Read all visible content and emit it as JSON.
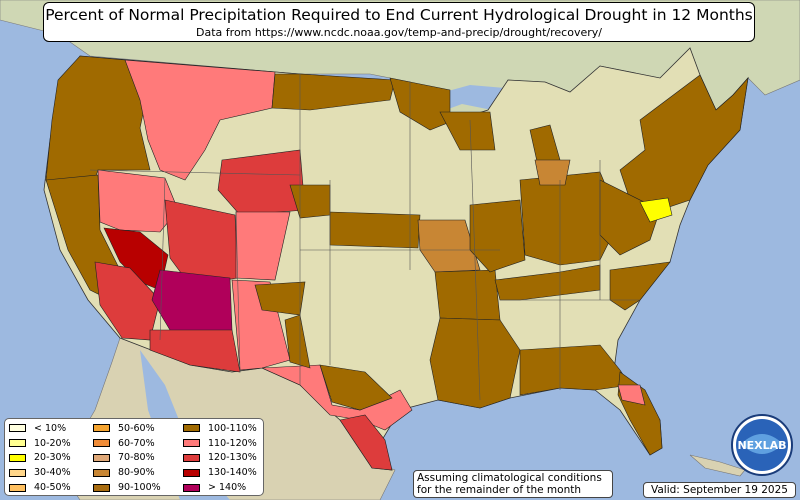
{
  "title": "Percent of Normal Precipitation Required to End Current Hydrological Drought in 12 Months",
  "subtitle": "Data from https://www.ncdc.noaa.gov/temp-and-precip/drought/recovery/",
  "note_lines": [
    "Assuming climatological conditions",
    "for the remainder of the month"
  ],
  "valid": "Valid: September 19 2025",
  "logo_text": "NEXLAB",
  "legend": [
    {
      "label": "< 10%",
      "color": "#ffffe0"
    },
    {
      "label": "10-20%",
      "color": "#ffff90"
    },
    {
      "label": "20-30%",
      "color": "#ffff00"
    },
    {
      "label": "30-40%",
      "color": "#ffd68a"
    },
    {
      "label": "40-50%",
      "color": "#ffc060"
    },
    {
      "label": "50-60%",
      "color": "#f5a430"
    },
    {
      "label": "60-70%",
      "color": "#f08c38"
    },
    {
      "label": "70-80%",
      "color": "#dfa878"
    },
    {
      "label": "80-90%",
      "color": "#c88634"
    },
    {
      "label": "90-100%",
      "color": "#a86c10"
    },
    {
      "label": "100-110%",
      "color": "#a06a00"
    },
    {
      "label": "110-120%",
      "color": "#ff7a7a"
    },
    {
      "label": "120-130%",
      "color": "#dd3c3c"
    },
    {
      "label": "130-140%",
      "color": "#b80000"
    },
    {
      "label": "> 140%",
      "color": "#b0005a"
    }
  ],
  "colors": {
    "ocean": "#9db9e0",
    "land": "#e2dfb5",
    "canada": "#cfd7b4",
    "mexico": "#d9d2b2"
  }
}
